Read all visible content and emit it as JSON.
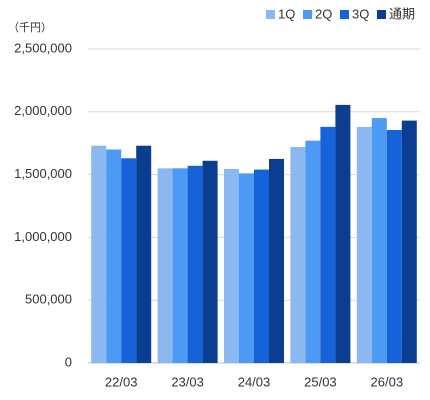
{
  "chart_data": {
    "type": "bar",
    "unit_label": "（千円）",
    "categories": [
      "22/03",
      "23/03",
      "24/03",
      "25/03",
      "26/03"
    ],
    "series": [
      {
        "name": "1Q",
        "color": "#8cb8f2",
        "values": [
          1730000,
          1550000,
          1545000,
          1720000,
          1880000
        ]
      },
      {
        "name": "2Q",
        "color": "#4d9af5",
        "values": [
          1700000,
          1550000,
          1510000,
          1770000,
          1950000
        ]
      },
      {
        "name": "3Q",
        "color": "#1562d9",
        "values": [
          1630000,
          1570000,
          1540000,
          1880000,
          1855000
        ]
      },
      {
        "name": "通期",
        "color": "#0b3d91",
        "values": [
          1730000,
          1610000,
          1625000,
          2055000,
          1930000
        ]
      }
    ],
    "ylim": [
      0,
      2500000
    ],
    "yticks": [
      0,
      {
        "value": 500000,
        "label": "500,000"
      },
      {
        "value": 1000000,
        "label": "1,000,000"
      },
      {
        "value": 1500000,
        "label": "1,500,000"
      },
      {
        "value": 2000000,
        "label": "2,000,000"
      },
      {
        "value": 2500000,
        "label": "2,500,000"
      }
    ],
    "grid": true,
    "legend": "top-right"
  }
}
